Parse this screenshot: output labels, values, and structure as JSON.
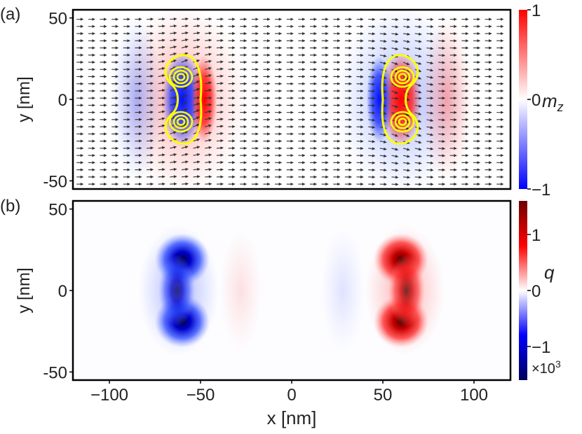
{
  "chart_data": [
    {
      "panel_label": "(a)",
      "type": "heatmap",
      "quantity": "m_z",
      "x_range": [
        -120,
        120
      ],
      "y_range": [
        -55,
        55
      ],
      "ylabel": "y [nm]",
      "yticks": [
        {
          "value": 50,
          "label": "50"
        },
        {
          "value": 0,
          "label": "0"
        },
        {
          "value": -50,
          "label": "-50"
        }
      ],
      "colorbar": {
        "label_symbol": "m",
        "label_sub": "z",
        "range": [
          -1,
          1
        ],
        "ticks": [
          {
            "value": 1,
            "label": "1"
          },
          {
            "value": 0,
            "label": "0"
          },
          {
            "value": -1,
            "label": "−1"
          }
        ],
        "colormap": [
          "#0000ff",
          "#ffffff",
          "#ff0000"
        ]
      },
      "overlay": [
        "in-plane magnetization arrows",
        "yellow contours"
      ],
      "features": [
        {
          "x": -60,
          "y": 0,
          "sign": -1
        },
        {
          "x": 60,
          "y": 0,
          "sign": 1
        }
      ]
    },
    {
      "panel_label": "(b)",
      "type": "heatmap",
      "quantity": "q",
      "x_range": [
        -120,
        120
      ],
      "y_range": [
        -55,
        55
      ],
      "xlabel": "x [nm]",
      "ylabel": "y [nm]",
      "xticks": [
        {
          "value": -100,
          "label": "−100"
        },
        {
          "value": -50,
          "label": "−50"
        },
        {
          "value": 0,
          "label": "0"
        },
        {
          "value": 50,
          "label": "50"
        },
        {
          "value": 100,
          "label": "100"
        }
      ],
      "yticks": [
        {
          "value": 50,
          "label": "50"
        },
        {
          "value": 0,
          "label": "0"
        },
        {
          "value": -50,
          "label": "-50"
        }
      ],
      "colorbar": {
        "label": "q",
        "range": [
          -1.6,
          1.6
        ],
        "ticks": [
          {
            "value": 1,
            "label": "1"
          },
          {
            "value": 0,
            "label": "0"
          },
          {
            "value": -1,
            "label": "−1"
          }
        ],
        "multiplier_base": "×10",
        "multiplier_exp": "3",
        "colormap": [
          "#00005a",
          "#0000ff",
          "#ffffff",
          "#ff0000",
          "#6e0000"
        ]
      },
      "features": [
        {
          "x": -60,
          "y": 0,
          "sign": -1
        },
        {
          "x": 60,
          "y": 0,
          "sign": 1
        }
      ]
    }
  ]
}
